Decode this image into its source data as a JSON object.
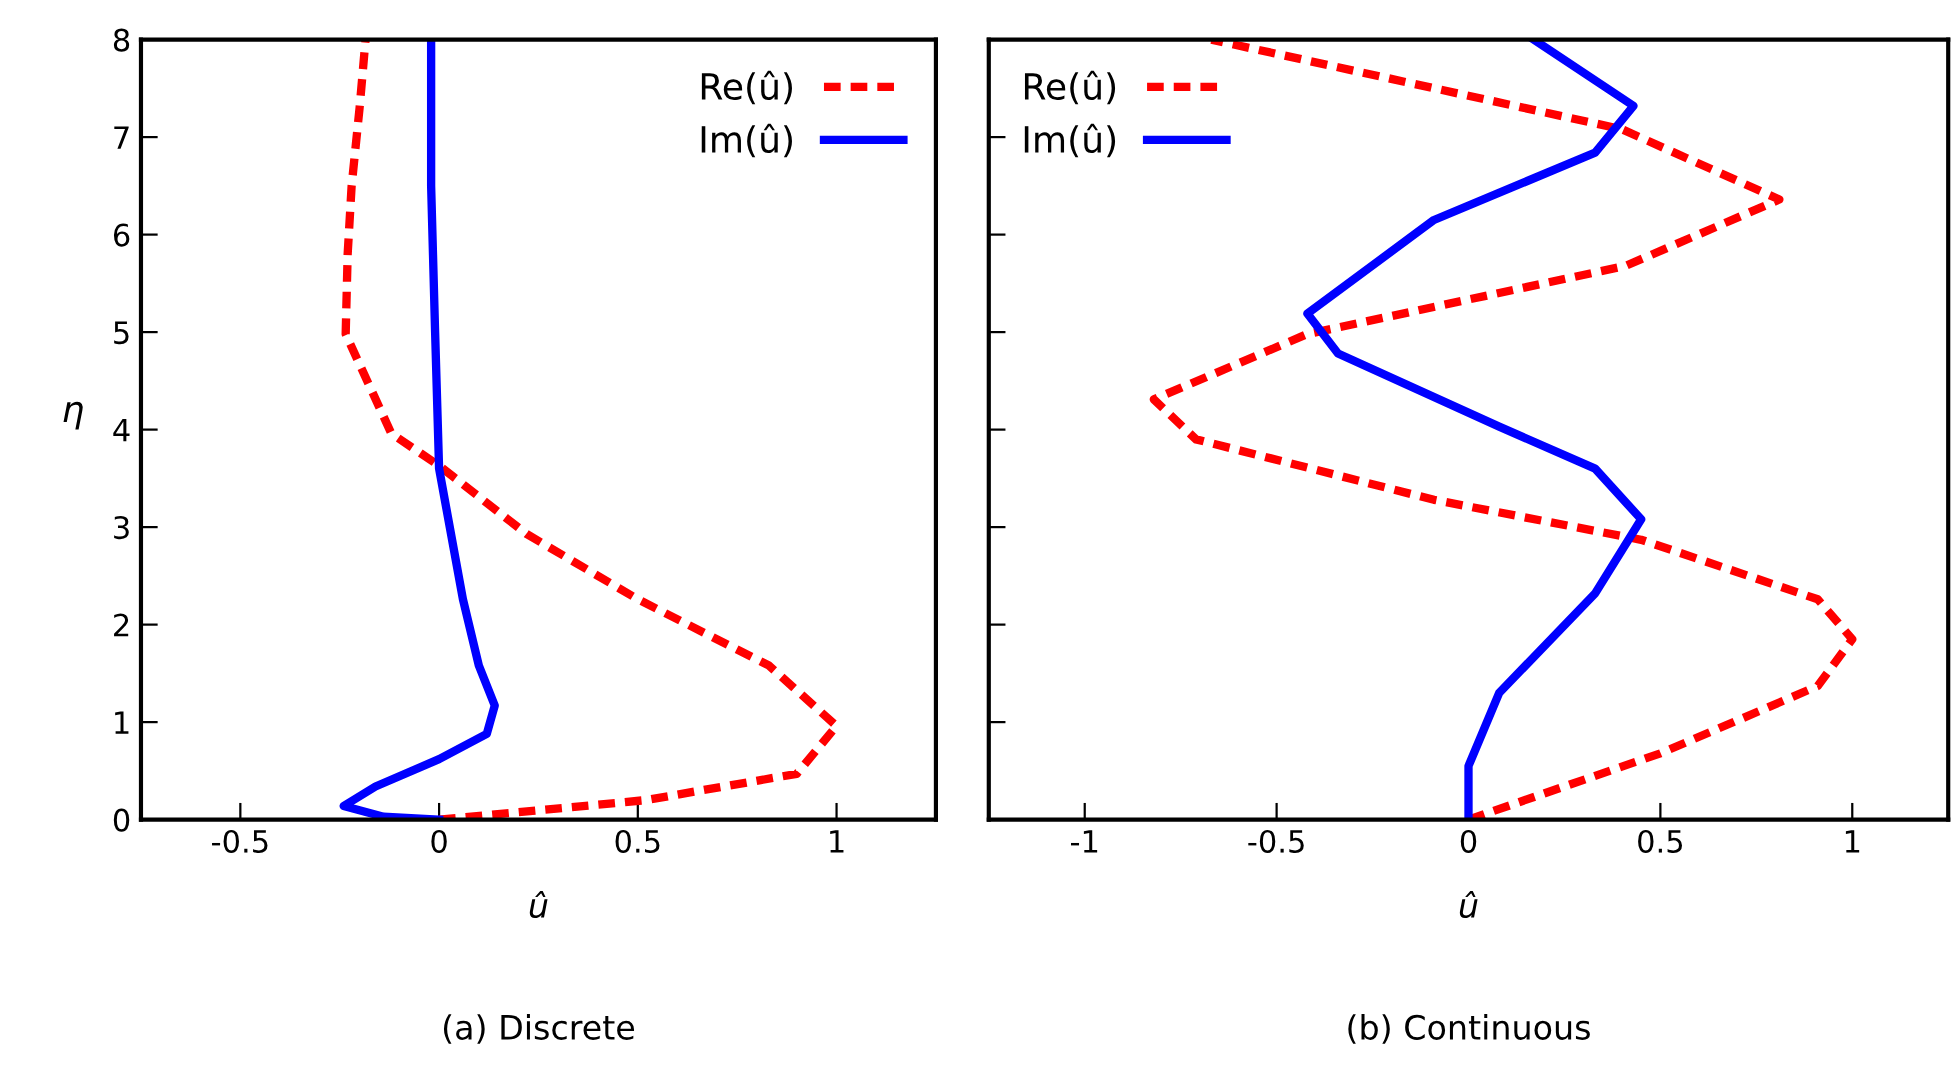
{
  "chart_data": [
    {
      "type": "line",
      "xlabel": "û",
      "ylabel": "η",
      "annotations": [
        "(a) Discrete"
      ],
      "xlim": [
        -0.75,
        1.25
      ],
      "xticks": [
        -0.5,
        0,
        0.5,
        1
      ],
      "ylim": [
        0,
        8
      ],
      "yticks": [
        0,
        1,
        2,
        3,
        4,
        5,
        6,
        7,
        8
      ],
      "legend": "top right",
      "grid": false,
      "series": [
        {
          "name": "Re(û)",
          "color": "#ff0000",
          "line_style": "dashed",
          "x": [
            0,
            0.52,
            0.9,
            1.0,
            0.83,
            0.5,
            0.22,
            0,
            -0.12,
            -0.235,
            -0.23,
            -0.22,
            -0.2,
            -0.185
          ],
          "values": [
            0,
            0.2,
            0.47,
            0.96,
            1.58,
            2.26,
            2.93,
            3.63,
            3.96,
            4.98,
            5.8,
            6.5,
            7.3,
            8
          ]
        },
        {
          "name": "Im(û)",
          "color": "#0000ff",
          "line_style": "solid",
          "x": [
            0,
            -0.14,
            -0.24,
            -0.16,
            0,
            0.12,
            0.14,
            0.1,
            0.06,
            0,
            -0.01,
            -0.02,
            -0.02
          ],
          "values": [
            0,
            0.03,
            0.14,
            0.34,
            0.62,
            0.88,
            1.17,
            1.58,
            2.26,
            3.6,
            5,
            6.5,
            8
          ]
        }
      ]
    },
    {
      "type": "line",
      "xlabel": "û",
      "annotations": [
        "(b) Continuous"
      ],
      "xlim": [
        -1.25,
        1.25
      ],
      "xticks": [
        -1,
        -0.5,
        0,
        0.5,
        1
      ],
      "ylim": [
        0,
        8
      ],
      "yticks": [
        0,
        1,
        2,
        3,
        4,
        5,
        6,
        7,
        8
      ],
      "tick_labels": "x",
      "legend": "top left",
      "grid": false,
      "series": [
        {
          "name": "Re(û)",
          "color": "#ff0000",
          "line_style": "dashed",
          "x": [
            0,
            0.5,
            0.91,
            1.0,
            0.91,
            0.45,
            -0.09,
            -0.71,
            -0.82,
            -0.42,
            0.41,
            0.81,
            0.4,
            -0.67
          ],
          "values": [
            0,
            0.68,
            1.37,
            1.85,
            2.26,
            2.87,
            3.28,
            3.9,
            4.31,
            4.98,
            5.68,
            6.36,
            7.08,
            8
          ]
        },
        {
          "name": "Im(û)",
          "color": "#0000ff",
          "line_style": "solid",
          "x": [
            0,
            0.0,
            0.08,
            0.33,
            0.45,
            0.33,
            0.08,
            -0.34,
            -0.42,
            -0.09,
            0.33,
            0.43,
            0.17
          ],
          "values": [
            0,
            0.55,
            1.3,
            2.32,
            3.08,
            3.6,
            4.03,
            4.78,
            5.19,
            6.15,
            6.84,
            7.32,
            8
          ]
        }
      ]
    }
  ]
}
